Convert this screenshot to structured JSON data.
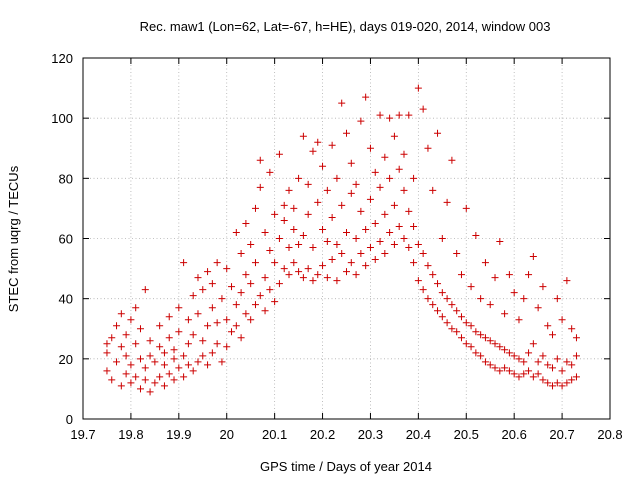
{
  "chart_data": {
    "type": "scatter",
    "title": "Rec. maw1 (Lon=62, Lat=-67, h=HE), days 019-020, 2014, window 003",
    "xlabel": "GPS time / Days of year 2014",
    "ylabel": "STEC from uqrg / TECUs",
    "xlim": [
      19.7,
      20.8
    ],
    "ylim": [
      0,
      120
    ],
    "xticks": [
      "19.7",
      "19.8",
      "19.9",
      "20",
      "20.1",
      "20.2",
      "20.3",
      "20.4",
      "20.5",
      "20.6",
      "20.7",
      "20.8"
    ],
    "yticks": [
      "0",
      "20",
      "40",
      "60",
      "80",
      "100",
      "120"
    ],
    "grid": true,
    "marker": "+",
    "color": "#cc0000",
    "series": [
      {
        "points": [
          [
            19.75,
            16
          ],
          [
            19.75,
            22
          ],
          [
            19.75,
            25
          ],
          [
            19.76,
            13
          ],
          [
            19.76,
            27
          ],
          [
            19.77,
            19
          ],
          [
            19.77,
            31
          ],
          [
            19.78,
            11
          ],
          [
            19.78,
            24
          ],
          [
            19.78,
            35
          ],
          [
            19.79,
            15
          ],
          [
            19.79,
            21
          ],
          [
            19.79,
            28
          ],
          [
            19.8,
            12
          ],
          [
            19.8,
            18
          ],
          [
            19.8,
            33
          ],
          [
            19.81,
            14
          ],
          [
            19.81,
            25
          ],
          [
            19.81,
            37
          ],
          [
            19.82,
            10
          ],
          [
            19.82,
            20
          ],
          [
            19.82,
            30
          ],
          [
            19.83,
            13
          ],
          [
            19.83,
            17
          ],
          [
            19.83,
            43
          ],
          [
            19.84,
            9
          ],
          [
            19.84,
            21
          ],
          [
            19.84,
            26
          ],
          [
            19.85,
            12
          ],
          [
            19.85,
            19
          ],
          [
            19.86,
            14
          ],
          [
            19.86,
            24
          ],
          [
            19.86,
            31
          ],
          [
            19.87,
            11
          ],
          [
            19.87,
            18
          ],
          [
            19.87,
            22
          ],
          [
            19.88,
            15
          ],
          [
            19.88,
            27
          ],
          [
            19.88,
            34
          ],
          [
            19.89,
            13
          ],
          [
            19.89,
            20
          ],
          [
            19.89,
            23
          ],
          [
            19.9,
            17
          ],
          [
            19.9,
            29
          ],
          [
            19.9,
            37
          ],
          [
            19.91,
            14
          ],
          [
            19.91,
            21
          ],
          [
            19.91,
            52
          ],
          [
            19.92,
            18
          ],
          [
            19.92,
            25
          ],
          [
            19.92,
            33
          ],
          [
            19.93,
            16
          ],
          [
            19.93,
            28
          ],
          [
            19.93,
            41
          ],
          [
            19.94,
            19
          ],
          [
            19.94,
            35
          ],
          [
            19.94,
            47
          ],
          [
            19.95,
            21
          ],
          [
            19.95,
            26
          ],
          [
            19.95,
            43
          ],
          [
            19.96,
            18
          ],
          [
            19.96,
            31
          ],
          [
            19.96,
            49
          ],
          [
            19.97,
            22
          ],
          [
            19.97,
            37
          ],
          [
            19.97,
            45
          ],
          [
            19.98,
            25
          ],
          [
            19.98,
            32
          ],
          [
            19.98,
            52
          ],
          [
            19.99,
            19
          ],
          [
            19.99,
            40
          ],
          [
            20.0,
            24
          ],
          [
            20.0,
            33
          ],
          [
            20.0,
            50
          ],
          [
            20.01,
            29
          ],
          [
            20.01,
            44
          ],
          [
            20.02,
            31
          ],
          [
            20.02,
            38
          ],
          [
            20.02,
            62
          ],
          [
            20.03,
            27
          ],
          [
            20.03,
            42
          ],
          [
            20.03,
            55
          ],
          [
            20.04,
            35
          ],
          [
            20.04,
            48
          ],
          [
            20.04,
            65
          ],
          [
            20.05,
            33
          ],
          [
            20.05,
            45
          ],
          [
            20.05,
            58
          ],
          [
            20.06,
            38
          ],
          [
            20.06,
            52
          ],
          [
            20.06,
            70
          ],
          [
            20.07,
            41
          ],
          [
            20.07,
            86
          ],
          [
            20.07,
            77
          ],
          [
            20.08,
            36
          ],
          [
            20.08,
            47
          ],
          [
            20.08,
            62
          ],
          [
            20.09,
            43
          ],
          [
            20.09,
            56
          ],
          [
            20.09,
            82
          ],
          [
            20.1,
            39
          ],
          [
            20.1,
            52
          ],
          [
            20.1,
            68
          ],
          [
            20.11,
            45
          ],
          [
            20.11,
            60
          ],
          [
            20.11,
            88
          ],
          [
            20.12,
            50
          ],
          [
            20.12,
            66
          ],
          [
            20.12,
            71
          ],
          [
            20.13,
            48
          ],
          [
            20.13,
            57
          ],
          [
            20.13,
            76
          ],
          [
            20.14,
            52
          ],
          [
            20.14,
            63
          ],
          [
            20.14,
            70
          ],
          [
            20.15,
            49
          ],
          [
            20.15,
            58
          ],
          [
            20.15,
            80
          ],
          [
            20.16,
            47
          ],
          [
            20.16,
            61
          ],
          [
            20.16,
            94
          ],
          [
            20.17,
            50
          ],
          [
            20.17,
            68
          ],
          [
            20.17,
            78
          ],
          [
            20.18,
            46
          ],
          [
            20.18,
            57
          ],
          [
            20.18,
            89
          ],
          [
            20.19,
            48
          ],
          [
            20.19,
            72
          ],
          [
            20.19,
            92
          ],
          [
            20.2,
            51
          ],
          [
            20.2,
            63
          ],
          [
            20.2,
            84
          ],
          [
            20.21,
            47
          ],
          [
            20.21,
            59
          ],
          [
            20.21,
            76
          ],
          [
            20.22,
            53
          ],
          [
            20.22,
            67
          ],
          [
            20.22,
            91
          ],
          [
            20.23,
            46
          ],
          [
            20.23,
            58
          ],
          [
            20.23,
            80
          ],
          [
            20.24,
            55
          ],
          [
            20.24,
            71
          ],
          [
            20.24,
            105
          ],
          [
            20.25,
            49
          ],
          [
            20.25,
            62
          ],
          [
            20.25,
            95
          ],
          [
            20.26,
            52
          ],
          [
            20.26,
            75
          ],
          [
            20.26,
            85
          ],
          [
            20.27,
            48
          ],
          [
            20.27,
            60
          ],
          [
            20.27,
            78
          ],
          [
            20.28,
            55
          ],
          [
            20.28,
            69
          ],
          [
            20.28,
            99
          ],
          [
            20.29,
            51
          ],
          [
            20.29,
            63
          ],
          [
            20.29,
            107
          ],
          [
            20.3,
            57
          ],
          [
            20.3,
            73
          ],
          [
            20.3,
            90
          ],
          [
            20.31,
            53
          ],
          [
            20.31,
            65
          ],
          [
            20.31,
            82
          ],
          [
            20.32,
            59
          ],
          [
            20.32,
            77
          ],
          [
            20.32,
            101
          ],
          [
            20.33,
            55
          ],
          [
            20.33,
            68
          ],
          [
            20.33,
            87
          ],
          [
            20.34,
            62
          ],
          [
            20.34,
            80
          ],
          [
            20.34,
            100
          ],
          [
            20.35,
            58
          ],
          [
            20.35,
            71
          ],
          [
            20.35,
            94
          ],
          [
            20.36,
            64
          ],
          [
            20.36,
            83
          ],
          [
            20.36,
            101
          ],
          [
            20.37,
            60
          ],
          [
            20.37,
            76
          ],
          [
            20.37,
            88
          ],
          [
            20.38,
            57
          ],
          [
            20.38,
            69
          ],
          [
            20.38,
            101
          ],
          [
            20.39,
            52
          ],
          [
            20.39,
            64
          ],
          [
            20.39,
            80
          ],
          [
            20.4,
            46
          ],
          [
            20.4,
            58
          ],
          [
            20.4,
            110
          ],
          [
            20.41,
            43
          ],
          [
            20.41,
            55
          ],
          [
            20.41,
            103
          ],
          [
            20.42,
            40
          ],
          [
            20.42,
            51
          ],
          [
            20.42,
            90
          ],
          [
            20.43,
            38
          ],
          [
            20.43,
            48
          ],
          [
            20.43,
            76
          ],
          [
            20.44,
            36
          ],
          [
            20.44,
            45
          ],
          [
            20.44,
            95
          ],
          [
            20.45,
            34
          ],
          [
            20.45,
            42
          ],
          [
            20.45,
            60
          ],
          [
            20.46,
            32
          ],
          [
            20.46,
            40
          ],
          [
            20.46,
            72
          ],
          [
            20.47,
            30
          ],
          [
            20.47,
            38
          ],
          [
            20.47,
            86
          ],
          [
            20.48,
            29
          ],
          [
            20.48,
            36
          ],
          [
            20.48,
            55
          ],
          [
            20.49,
            27
          ],
          [
            20.49,
            34
          ],
          [
            20.49,
            48
          ],
          [
            20.5,
            25
          ],
          [
            20.5,
            32
          ],
          [
            20.5,
            70
          ],
          [
            20.51,
            24
          ],
          [
            20.51,
            31
          ],
          [
            20.51,
            44
          ],
          [
            20.52,
            22
          ],
          [
            20.52,
            29
          ],
          [
            20.52,
            61
          ],
          [
            20.53,
            21
          ],
          [
            20.53,
            28
          ],
          [
            20.53,
            40
          ],
          [
            20.54,
            19
          ],
          [
            20.54,
            27
          ],
          [
            20.54,
            52
          ],
          [
            20.55,
            18
          ],
          [
            20.55,
            26
          ],
          [
            20.55,
            38
          ],
          [
            20.56,
            17
          ],
          [
            20.56,
            25
          ],
          [
            20.56,
            47
          ],
          [
            20.57,
            16
          ],
          [
            20.57,
            24
          ],
          [
            20.57,
            59
          ],
          [
            20.58,
            17
          ],
          [
            20.58,
            23
          ],
          [
            20.58,
            35
          ],
          [
            20.59,
            16
          ],
          [
            20.59,
            22
          ],
          [
            20.59,
            48
          ],
          [
            20.6,
            15
          ],
          [
            20.6,
            21
          ],
          [
            20.6,
            42
          ],
          [
            20.61,
            14
          ],
          [
            20.61,
            20
          ],
          [
            20.61,
            33
          ],
          [
            20.62,
            15
          ],
          [
            20.62,
            19
          ],
          [
            20.62,
            40
          ],
          [
            20.63,
            16
          ],
          [
            20.63,
            22
          ],
          [
            20.63,
            48
          ],
          [
            20.64,
            14
          ],
          [
            20.64,
            25
          ],
          [
            20.64,
            54
          ],
          [
            20.65,
            15
          ],
          [
            20.65,
            19
          ],
          [
            20.65,
            37
          ],
          [
            20.66,
            13
          ],
          [
            20.66,
            21
          ],
          [
            20.66,
            44
          ],
          [
            20.67,
            12
          ],
          [
            20.67,
            18
          ],
          [
            20.67,
            31
          ],
          [
            20.68,
            11
          ],
          [
            20.68,
            17
          ],
          [
            20.68,
            28
          ],
          [
            20.69,
            12
          ],
          [
            20.69,
            20
          ],
          [
            20.69,
            40
          ],
          [
            20.7,
            11
          ],
          [
            20.7,
            16
          ],
          [
            20.7,
            33
          ],
          [
            20.71,
            12
          ],
          [
            20.71,
            19
          ],
          [
            20.71,
            46
          ],
          [
            20.72,
            13
          ],
          [
            20.72,
            18
          ],
          [
            20.72,
            30
          ],
          [
            20.73,
            14
          ],
          [
            20.73,
            21
          ],
          [
            20.73,
            27
          ]
        ]
      }
    ]
  }
}
